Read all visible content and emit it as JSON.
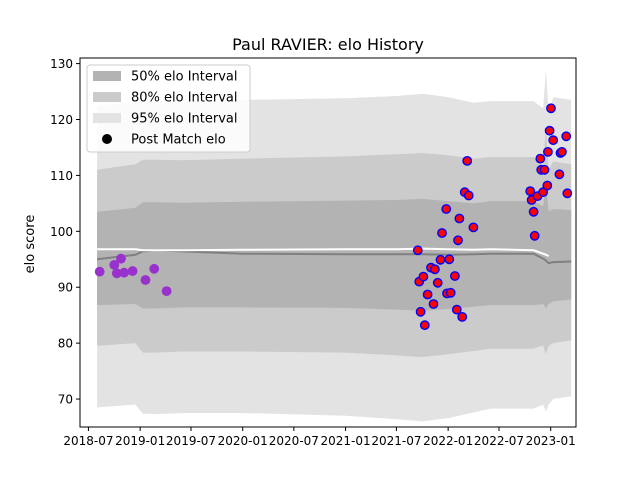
{
  "chart_data": {
    "type": "scatter",
    "title": "Paul RAVIER: elo History",
    "xlabel": "",
    "ylabel": "elo score",
    "xlim": [
      "2018-06-01",
      "2023-04-01"
    ],
    "ylim": [
      65,
      131
    ],
    "x_ticks": [
      {
        "date": "2018-07-01",
        "label": "2018-07"
      },
      {
        "date": "2019-01-01",
        "label": "2019-01"
      },
      {
        "date": "2019-07-01",
        "label": "2019-07"
      },
      {
        "date": "2020-01-01",
        "label": "2020-01"
      },
      {
        "date": "2020-07-01",
        "label": "2020-07"
      },
      {
        "date": "2021-01-01",
        "label": "2021-01"
      },
      {
        "date": "2021-07-01",
        "label": "2021-07"
      },
      {
        "date": "2022-01-01",
        "label": "2022-01"
      },
      {
        "date": "2022-07-01",
        "label": "2022-07"
      },
      {
        "date": "2023-01-01",
        "label": "2023-01"
      }
    ],
    "y_ticks": [
      70,
      80,
      90,
      100,
      110,
      120,
      130
    ],
    "grid": false,
    "legend": {
      "placement": "top-left",
      "entries": [
        {
          "label": "50% elo Interval",
          "color": "#b3b3b3",
          "kind": "patch"
        },
        {
          "label": "80% elo Interval",
          "color": "#cbcbcb",
          "kind": "patch"
        },
        {
          "label": "95% elo Interval",
          "color": "#e3e3e3",
          "kind": "patch"
        },
        {
          "label": "Post Match elo",
          "color": "#000000",
          "kind": "marker"
        }
      ]
    },
    "bands": [
      {
        "name": "95% elo Interval",
        "color": "#e3e3e3",
        "x": [
          "2018-08-01",
          "2018-12-15",
          "2019-01-10",
          "2019-03-01",
          "2019-06-01",
          "2020-01-01",
          "2021-01-01",
          "2021-07-01",
          "2021-10-01",
          "2022-01-01",
          "2022-04-01",
          "2022-06-01",
          "2022-11-01",
          "2022-12-05",
          "2022-12-15",
          "2022-12-25",
          "2023-01-10",
          "2023-03-15"
        ],
        "upper": [
          122.5,
          123,
          123.3,
          123.3,
          123.3,
          123.5,
          123.8,
          124.2,
          124.6,
          124.0,
          123.0,
          123.3,
          123.3,
          122.0,
          129.0,
          121.0,
          124.0,
          123.5
        ],
        "lower": [
          68.5,
          69,
          67.4,
          67.3,
          67.5,
          67.5,
          67.0,
          66.4,
          66.0,
          66.6,
          67.6,
          68.3,
          68.3,
          69.0,
          67.7,
          69.0,
          70.0,
          70.5
        ]
      },
      {
        "name": "80% elo Interval",
        "color": "#cbcbcb",
        "x": [
          "2018-08-01",
          "2018-12-15",
          "2019-01-10",
          "2019-03-01",
          "2019-06-01",
          "2020-01-01",
          "2021-01-01",
          "2021-07-01",
          "2021-10-01",
          "2022-01-01",
          "2022-04-01",
          "2022-06-01",
          "2022-11-01",
          "2022-12-05",
          "2022-12-15",
          "2022-12-25",
          "2023-01-10",
          "2023-03-15"
        ],
        "upper": [
          111.0,
          112,
          112.8,
          112.8,
          112.7,
          113.0,
          113.4,
          113.8,
          114.0,
          113.6,
          113.0,
          113.3,
          113.3,
          112.0,
          118.5,
          111.0,
          112.5,
          112.0
        ],
        "lower": [
          79.5,
          80,
          78.3,
          78.3,
          78.5,
          78.5,
          78.3,
          77.8,
          77.5,
          78.0,
          78.6,
          79.0,
          79.0,
          79.6,
          78.0,
          79.5,
          80.0,
          80.5
        ]
      },
      {
        "name": "50% elo Interval",
        "color": "#b3b3b3",
        "x": [
          "2018-08-01",
          "2018-12-15",
          "2019-01-10",
          "2019-03-01",
          "2019-06-01",
          "2020-01-01",
          "2021-01-01",
          "2021-07-01",
          "2021-10-01",
          "2022-01-01",
          "2022-04-01",
          "2022-06-01",
          "2022-11-01",
          "2022-12-05",
          "2022-12-15",
          "2022-12-25",
          "2023-01-10",
          "2023-03-15"
        ],
        "upper": [
          103.5,
          104.2,
          105.2,
          105.2,
          105.1,
          105.3,
          105.5,
          105.6,
          105.8,
          105.4,
          105.0,
          105.4,
          105.4,
          104.5,
          108.0,
          103.6,
          104.0,
          103.8
        ],
        "lower": [
          86.8,
          87.0,
          86.2,
          86.2,
          86.4,
          86.4,
          86.3,
          86.0,
          85.8,
          86.1,
          86.5,
          86.8,
          86.8,
          87.0,
          86.2,
          87.0,
          87.5,
          87.8
        ]
      }
    ],
    "lines": [
      {
        "color": "#808080",
        "x": [
          "2018-08-01",
          "2018-12-15",
          "2019-01-10",
          "2019-03-01",
          "2019-06-01",
          "2020-01-01",
          "2021-01-01",
          "2021-07-01",
          "2021-10-01",
          "2022-01-01",
          "2022-04-01",
          "2022-06-01",
          "2022-11-01",
          "2022-12-10",
          "2022-12-25",
          "2023-01-10",
          "2023-03-15"
        ],
        "y": [
          95.0,
          95.8,
          96.4,
          96.6,
          96.4,
          96.0,
          95.9,
          95.9,
          95.9,
          95.8,
          95.9,
          96.0,
          96.0,
          95.0,
          94.3,
          94.5,
          94.6
        ]
      },
      {
        "color": "#ffffff",
        "x": [
          "2018-08-01",
          "2018-12-15",
          "2019-01-10",
          "2019-03-01",
          "2019-06-01",
          "2020-01-01",
          "2021-01-01",
          "2021-07-01",
          "2021-10-01",
          "2022-01-01",
          "2022-04-01",
          "2022-06-01",
          "2022-11-01",
          "2022-12-10",
          "2022-12-25"
        ],
        "y": [
          96.8,
          96.8,
          96.6,
          96.6,
          96.6,
          96.7,
          96.8,
          96.8,
          96.9,
          96.8,
          96.7,
          96.8,
          96.6,
          95.9,
          95.6
        ]
      }
    ],
    "series": [
      {
        "name": "Post Match elo",
        "color": "#9932cc",
        "edge": "#9932cc",
        "points": [
          {
            "x": "2018-08-10",
            "y": 92.8
          },
          {
            "x": "2018-10-01",
            "y": 94.0
          },
          {
            "x": "2018-10-10",
            "y": 92.5
          },
          {
            "x": "2018-10-25",
            "y": 95.1
          },
          {
            "x": "2018-11-05",
            "y": 92.6
          },
          {
            "x": "2018-12-05",
            "y": 92.9
          },
          {
            "x": "2019-01-20",
            "y": 91.3
          },
          {
            "x": "2019-02-20",
            "y": 93.3
          },
          {
            "x": "2019-04-05",
            "y": 89.3
          }
        ]
      },
      {
        "name": "",
        "color": "#ff0000",
        "edge": "#0000ff",
        "points": [
          {
            "x": "2021-09-15",
            "y": 96.6
          },
          {
            "x": "2021-09-20",
            "y": 91.0
          },
          {
            "x": "2021-09-25",
            "y": 85.6
          },
          {
            "x": "2021-10-05",
            "y": 91.9
          },
          {
            "x": "2021-10-10",
            "y": 83.2
          },
          {
            "x": "2021-10-20",
            "y": 88.7
          },
          {
            "x": "2021-11-01",
            "y": 93.5
          },
          {
            "x": "2021-11-10",
            "y": 87.0
          },
          {
            "x": "2021-11-15",
            "y": 93.2
          },
          {
            "x": "2021-11-25",
            "y": 90.8
          },
          {
            "x": "2021-12-05",
            "y": 94.9
          },
          {
            "x": "2021-12-10",
            "y": 99.7
          },
          {
            "x": "2021-12-25",
            "y": 104.0
          },
          {
            "x": "2021-12-28",
            "y": 88.9
          },
          {
            "x": "2022-01-05",
            "y": 95.0
          },
          {
            "x": "2022-01-10",
            "y": 89.0
          },
          {
            "x": "2022-01-25",
            "y": 92.0
          },
          {
            "x": "2022-02-01",
            "y": 86.0
          },
          {
            "x": "2022-02-05",
            "y": 98.4
          },
          {
            "x": "2022-02-10",
            "y": 102.3
          },
          {
            "x": "2022-02-20",
            "y": 84.7
          },
          {
            "x": "2022-03-01",
            "y": 107.0
          },
          {
            "x": "2022-03-10",
            "y": 112.6
          },
          {
            "x": "2022-03-15",
            "y": 106.4
          },
          {
            "x": "2022-04-01",
            "y": 100.7
          },
          {
            "x": "2022-10-20",
            "y": 107.2
          },
          {
            "x": "2022-10-25",
            "y": 105.6
          },
          {
            "x": "2022-11-01",
            "y": 103.5
          },
          {
            "x": "2022-11-05",
            "y": 99.2
          },
          {
            "x": "2022-11-15",
            "y": 106.3
          },
          {
            "x": "2022-11-25",
            "y": 113.0
          },
          {
            "x": "2022-11-28",
            "y": 111.0
          },
          {
            "x": "2022-12-05",
            "y": 107.0
          },
          {
            "x": "2022-12-10",
            "y": 111.0
          },
          {
            "x": "2022-12-20",
            "y": 108.2
          },
          {
            "x": "2022-12-22",
            "y": 114.2
          },
          {
            "x": "2022-12-28",
            "y": 118.0
          },
          {
            "x": "2023-01-02",
            "y": 122.0
          },
          {
            "x": "2023-01-10",
            "y": 116.3
          },
          {
            "x": "2023-02-01",
            "y": 110.2
          },
          {
            "x": "2023-02-05",
            "y": 114.0
          },
          {
            "x": "2023-02-10",
            "y": 114.2
          },
          {
            "x": "2023-02-25",
            "y": 117.0
          },
          {
            "x": "2023-03-01",
            "y": 106.8
          }
        ]
      }
    ]
  }
}
